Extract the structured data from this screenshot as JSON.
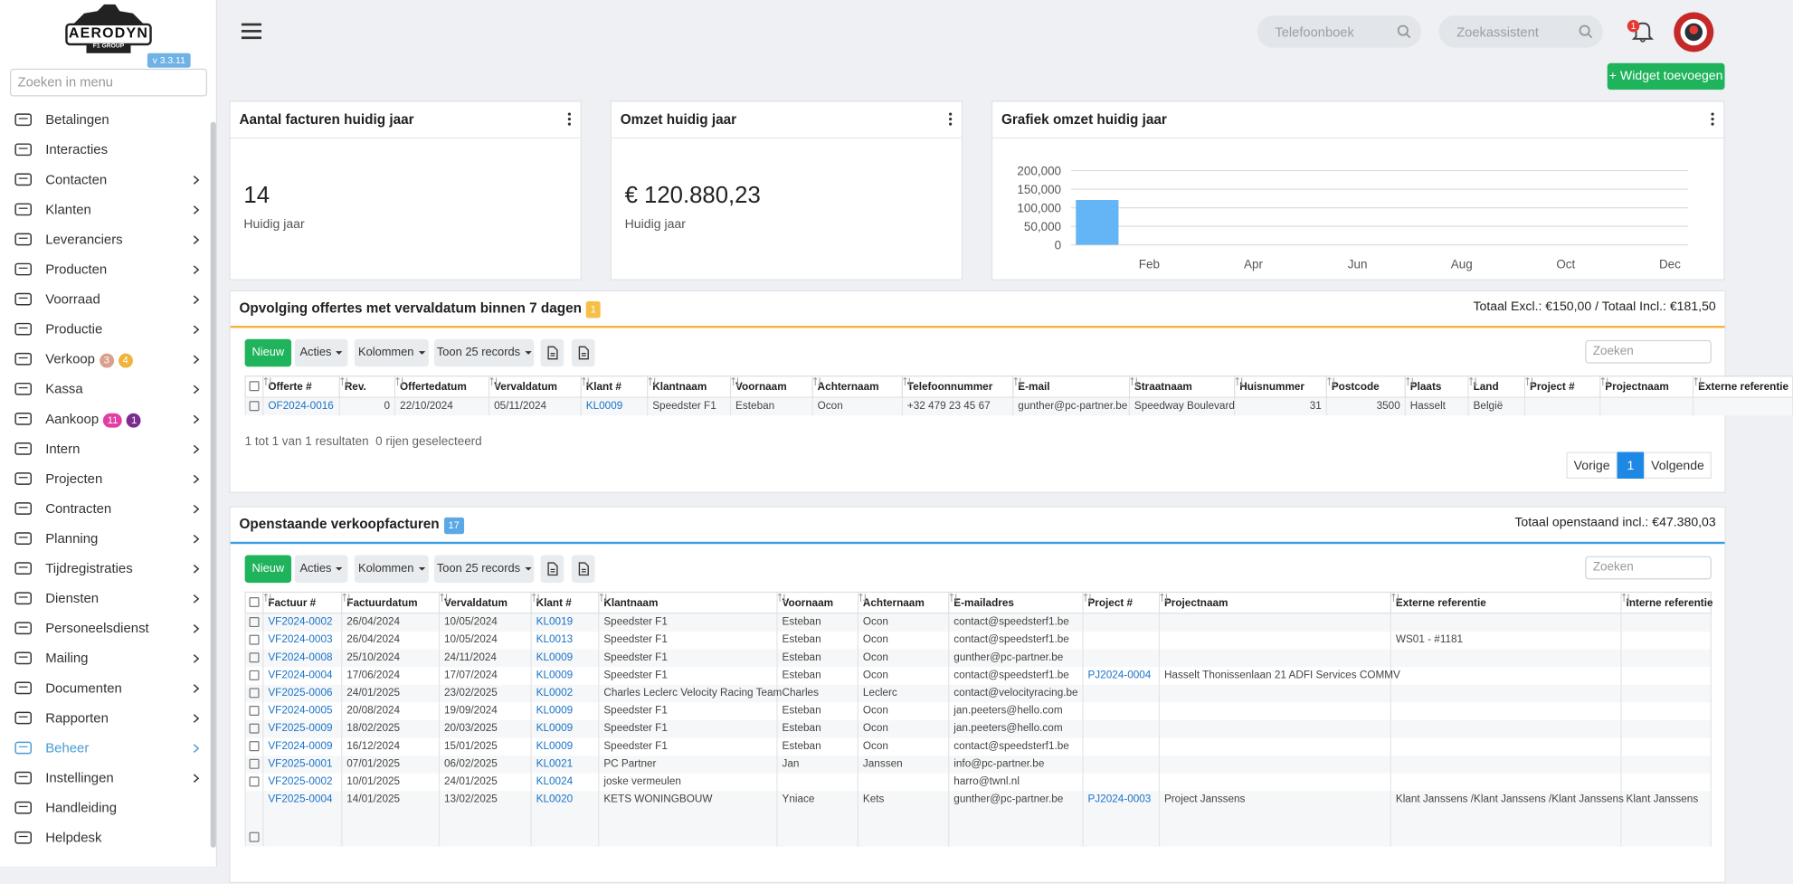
{
  "logo": {
    "name": "AERODYN",
    "sub": "F1 GROUP",
    "version": "v 3.3.11"
  },
  "sidebar": {
    "search_placeholder": "Zoeken in menu",
    "items": [
      {
        "label": "Betalingen"
      },
      {
        "label": "Interacties"
      },
      {
        "label": "Contacten",
        "submenu": true
      },
      {
        "label": "Klanten",
        "submenu": true
      },
      {
        "label": "Leveranciers",
        "submenu": true
      },
      {
        "label": "Producten",
        "submenu": true
      },
      {
        "label": "Voorraad",
        "submenu": true
      },
      {
        "label": "Productie",
        "submenu": true
      },
      {
        "label": "Verkoop",
        "submenu": true,
        "badges": [
          {
            "count": 3,
            "color": "#d9a08b"
          },
          {
            "count": 4,
            "color": "#f0b43c"
          }
        ]
      },
      {
        "label": "Kassa",
        "submenu": true
      },
      {
        "label": "Aankoop",
        "submenu": true,
        "badges": [
          {
            "count": 11,
            "color": "#e23ea3"
          },
          {
            "count": 1,
            "color": "#7b2d8e"
          }
        ]
      },
      {
        "label": "Intern",
        "submenu": true
      },
      {
        "label": "Projecten",
        "submenu": true
      },
      {
        "label": "Contracten",
        "submenu": true
      },
      {
        "label": "Planning",
        "submenu": true
      },
      {
        "label": "Tijdregistraties",
        "submenu": true
      },
      {
        "label": "Diensten",
        "submenu": true
      },
      {
        "label": "Personeelsdienst",
        "submenu": true
      },
      {
        "label": "Mailing",
        "submenu": true
      },
      {
        "label": "Documenten",
        "submenu": true
      },
      {
        "label": "Rapporten",
        "submenu": true
      },
      {
        "label": "Beheer",
        "submenu": true,
        "active": true
      },
      {
        "label": "Instellingen",
        "submenu": true
      },
      {
        "label": "Handleiding"
      },
      {
        "label": "Helpdesk"
      }
    ]
  },
  "topbar": {
    "phonebook_placeholder": "Telefoonboek",
    "assistant_placeholder": "Zoekassistent",
    "notifications": 1
  },
  "add_widget_button": "+ Widget toevoegen",
  "widgets": [
    {
      "title": "Aantal facturen huidig jaar",
      "value": "14",
      "caption": "Huidig jaar"
    },
    {
      "title": "Omzet huidig jaar",
      "value": "€ 120.880,23",
      "caption": "Huidig jaar"
    }
  ],
  "chart_data": {
    "type": "bar",
    "title": "Grafiek omzet huidig jaar",
    "categories": [
      null,
      "Feb",
      null,
      "Apr",
      null,
      "Jun",
      null,
      "Aug",
      null,
      "Oct",
      null,
      "Dec"
    ],
    "values": [
      120880.23,
      0,
      0,
      0,
      0,
      0,
      0,
      0,
      0,
      0,
      0,
      0
    ],
    "color": "#64b5f6",
    "ylim": [
      0,
      200000
    ],
    "yticks": [
      0,
      {
        "value": 50000,
        "label": "50,000"
      },
      {
        "value": 100000,
        "label": "100,000"
      },
      {
        "value": 150000,
        "label": "150,000"
      },
      {
        "value": 200000,
        "label": "200,000"
      }
    ],
    "grid": true
  },
  "panels": [
    {
      "title": "Opvolging offertes met vervaldatum binnen 7 dagen",
      "badge": 1,
      "badge_color": "#f5c044",
      "accent_color": "#f5b342",
      "totals": "Totaal Excl.: €150,00 / Totaal Incl.: €181,50",
      "buttons": {
        "new": "Nieuw",
        "actions": "Acties",
        "columns": "Kolommen",
        "show": "Toon 25 records"
      },
      "search_placeholder": "Zoeken",
      "table": {
        "columns": [
          "Offerte #",
          "Rev.",
          "Offertedatum",
          "Vervaldatum",
          "Klant #",
          "Klantnaam",
          "Voornaam",
          "Achternaam",
          "Telefoonnummer",
          "E-mail",
          "Straatnaam",
          "Huisnummer",
          "Postcode",
          "Plaats",
          "Land",
          "Project #",
          "Projectnaam",
          "Externe referentie"
        ],
        "rows": [
          [
            "OF2024-0016",
            0,
            "22/10/2024",
            "05/11/2024",
            "KL0009",
            "Speedster F1",
            "Esteban",
            "Ocon",
            "+32 479 23 45 67",
            "gunther@pc-partner.be",
            "Speedway Boulevard",
            31,
            3500,
            "Hasselt",
            "België",
            null,
            null,
            null
          ]
        ]
      },
      "footer": {
        "results": "1 tot 1 van 1 resultaten",
        "selected": "0 rijen geselecteerd"
      },
      "pagination": {
        "prev": "Vorige",
        "page": 1,
        "next": "Volgende"
      }
    },
    {
      "title": "Openstaande verkoopfacturen",
      "badge": 17,
      "badge_color": "#5aa9e6",
      "accent_color": "#3c9ee5",
      "totals": "Totaal openstaand incl.: €47.380,03",
      "buttons": {
        "new": "Nieuw",
        "actions": "Acties",
        "columns": "Kolommen",
        "show": "Toon 25 records"
      },
      "search_placeholder": "Zoeken",
      "table": {
        "columns": [
          "Factuur #",
          "Factuurdatum",
          "Vervaldatum",
          "Klant #",
          "Klantnaam",
          "Voornaam",
          "Achternaam",
          "E-mailadres",
          "Project #",
          "Projectnaam",
          "Externe referentie",
          "Interne referentie"
        ],
        "rows": [
          [
            "VF2024-0002",
            "26/04/2024",
            "10/05/2024",
            "KL0019",
            "Speedster F1",
            "Esteban",
            "Ocon",
            "contact@speedsterf1.be",
            null,
            null,
            null,
            null
          ],
          [
            "VF2024-0003",
            "26/04/2024",
            "10/05/2024",
            "KL0013",
            "Speedster F1",
            "Esteban",
            "Ocon",
            "contact@speedsterf1.be",
            null,
            null,
            "WS01 - #1181",
            null
          ],
          [
            "VF2024-0008",
            "25/10/2024",
            "24/11/2024",
            "KL0009",
            "Speedster F1",
            "Esteban",
            "Ocon",
            "gunther@pc-partner.be",
            null,
            null,
            null,
            null
          ],
          [
            "VF2024-0004",
            "17/06/2024",
            "17/07/2024",
            "KL0009",
            "Speedster F1",
            "Esteban",
            "Ocon",
            "contact@speedsterf1.be",
            "PJ2024-0004",
            "Hasselt Thonissenlaan 21 ADFI Services COMMV",
            null,
            null
          ],
          [
            "VF2025-0006",
            "24/01/2025",
            "23/02/2025",
            "KL0002",
            "Charles Leclerc Velocity Racing Team",
            "Charles",
            "Leclerc",
            "contact@velocityracing.be",
            null,
            null,
            null,
            null
          ],
          [
            "VF2024-0005",
            "20/08/2024",
            "19/09/2024",
            "KL0009",
            "Speedster F1",
            "Esteban",
            "Ocon",
            "jan.peeters@hello.com",
            null,
            null,
            null,
            null
          ],
          [
            "VF2025-0009",
            "18/02/2025",
            "20/03/2025",
            "KL0009",
            "Speedster F1",
            "Esteban",
            "Ocon",
            "jan.peeters@hello.com",
            null,
            null,
            null,
            null
          ],
          [
            "VF2024-0009",
            "16/12/2024",
            "15/01/2025",
            "KL0009",
            "Speedster F1",
            "Esteban",
            "Ocon",
            "contact@speedsterf1.be",
            null,
            null,
            null,
            null
          ],
          [
            "VF2025-0001",
            "07/01/2025",
            "06/02/2025",
            "KL0021",
            "PC Partner",
            "Jan",
            "Janssen",
            "info@pc-partner.be",
            null,
            null,
            null,
            null
          ],
          [
            "VF2025-0002",
            "10/01/2025",
            "24/01/2025",
            "KL0024",
            "joske vermeulen",
            null,
            null,
            "harro@twnl.nl",
            null,
            null,
            null,
            null
          ],
          [
            "VF2025-0004",
            "14/01/2025",
            "13/02/2025",
            "KL0020",
            "KETS WONINGBOUW",
            "Yniace",
            "Kets",
            "gunther@pc-partner.be",
            "PJ2024-0003",
            "Project Janssens",
            "Klant Janssens /Klant Janssens /Klant Janssens",
            "Klant Janssens"
          ]
        ]
      }
    }
  ]
}
